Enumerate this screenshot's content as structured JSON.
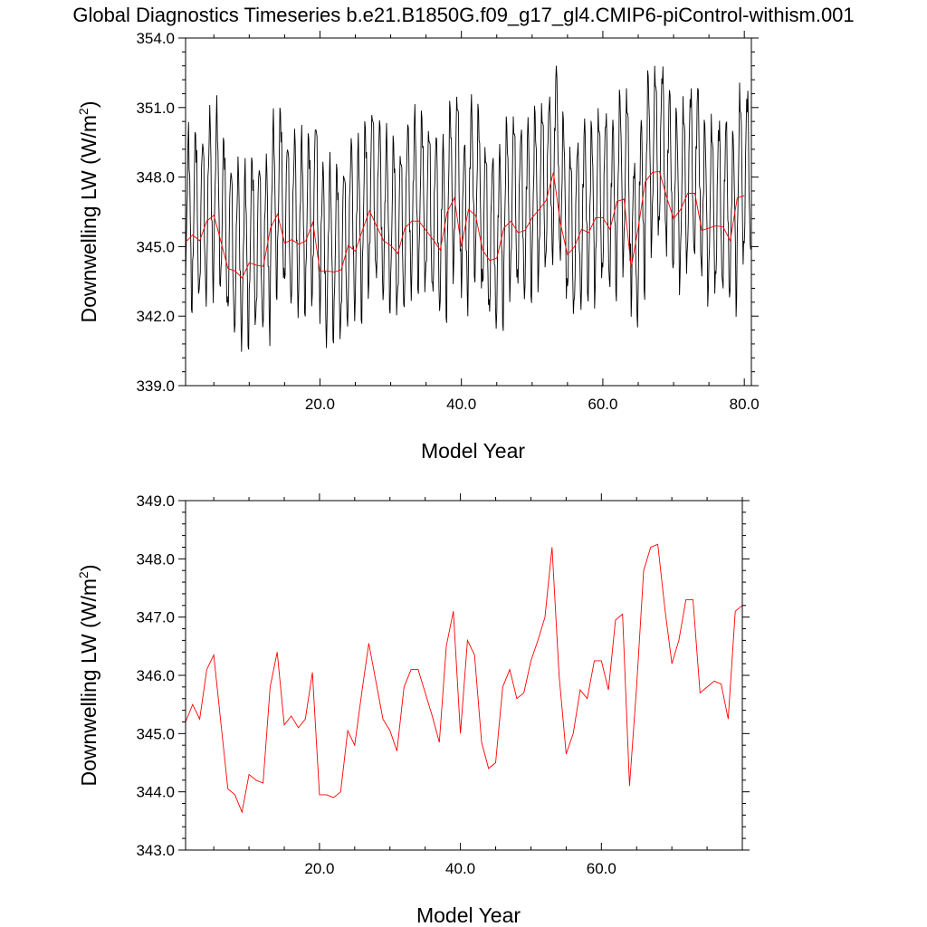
{
  "title": "Global Diagnostics Timeseries b.e21.B1850G.f09_g17_gl4.CMIP6-piControl-withism.001",
  "chart_data": [
    {
      "type": "line",
      "xlabel": "Model Year",
      "ylabel": "Downwelling LW (W/m²)",
      "ylabel_main": "Downwelling LW (W/m",
      "ylabel_sup": "2",
      "ylabel_end": ")",
      "xlim": [
        1,
        81
      ],
      "ylim": [
        339.0,
        354.0
      ],
      "xticks": [
        20.0,
        40.0,
        60.0,
        80.0
      ],
      "xtick_labels": [
        "20.0",
        "40.0",
        "60.0",
        "80.0"
      ],
      "yticks": [
        339.0,
        342.0,
        345.0,
        348.0,
        351.0,
        354.0
      ],
      "ytick_labels": [
        "339.0",
        "342.0",
        "345.0",
        "348.0",
        "351.0",
        "354.0"
      ],
      "grid": false,
      "series": [
        {
          "color": "#000000",
          "points_per_year": 12,
          "x_start": 1.0,
          "monthly_pattern_start": [
            -2.2,
            -0.3,
            1.0,
            2.7,
            4.0,
            4.4,
            4.0,
            2.7,
            0.9,
            -0.9,
            -2.2,
            -2.9
          ],
          "max_abs_dev": 4.4
        },
        {
          "color": "#ff0000",
          "x": [
            1,
            2,
            3,
            4,
            5,
            6,
            7,
            8,
            9,
            10,
            11,
            12,
            13,
            14,
            15,
            16,
            17,
            18,
            19,
            20,
            21,
            22,
            23,
            24,
            25,
            26,
            27,
            28,
            29,
            30,
            31,
            32,
            33,
            34,
            35,
            36,
            37,
            38,
            39,
            40,
            41,
            42,
            43,
            44,
            45,
            46,
            47,
            48,
            49,
            50,
            51,
            52,
            53,
            54,
            55,
            56,
            57,
            58,
            59,
            60,
            61,
            62,
            63,
            64,
            65,
            66,
            67,
            68,
            69,
            70,
            71,
            72,
            73,
            74,
            75,
            76,
            77,
            78,
            79,
            80
          ],
          "values": [
            345.2,
            345.5,
            345.25,
            346.1,
            346.35,
            345.2,
            344.05,
            343.95,
            343.65,
            344.3,
            344.2,
            344.15,
            345.8,
            346.4,
            345.15,
            345.3,
            345.1,
            345.25,
            346.05,
            343.95,
            343.95,
            343.9,
            344.0,
            345.05,
            344.8,
            345.7,
            346.55,
            345.9,
            345.25,
            345.05,
            344.7,
            345.8,
            346.1,
            346.1,
            345.7,
            345.3,
            344.85,
            346.5,
            347.1,
            345.0,
            346.6,
            346.35,
            344.85,
            344.4,
            344.5,
            345.8,
            346.1,
            345.6,
            345.7,
            346.25,
            346.6,
            347.0,
            348.2,
            346.0,
            344.65,
            345.0,
            345.75,
            345.6,
            346.25,
            346.25,
            345.75,
            346.95,
            347.05,
            344.1,
            345.8,
            347.8,
            348.2,
            348.25,
            347.15,
            346.2,
            346.6,
            347.3,
            347.3,
            345.7,
            345.8,
            345.9,
            345.85,
            345.25,
            347.1,
            347.2
          ]
        }
      ]
    },
    {
      "type": "line",
      "xlabel": "Model Year",
      "ylabel": "Downwelling LW (W/m²)",
      "ylabel_main": "Downwelling LW (W/m",
      "ylabel_sup": "2",
      "ylabel_end": ")",
      "xlim": [
        1,
        80
      ],
      "ylim": [
        343.0,
        349.0
      ],
      "xticks": [
        20.0,
        40.0,
        60.0
      ],
      "xtick_labels": [
        "20.0",
        "40.0",
        "60.0"
      ],
      "yticks": [
        343.0,
        344.0,
        345.0,
        346.0,
        347.0,
        348.0,
        349.0
      ],
      "ytick_labels": [
        "343.0",
        "344.0",
        "345.0",
        "346.0",
        "347.0",
        "348.0",
        "349.0"
      ],
      "grid": false,
      "series": [
        {
          "color": "#ff0000",
          "x": [
            1,
            2,
            3,
            4,
            5,
            6,
            7,
            8,
            9,
            10,
            11,
            12,
            13,
            14,
            15,
            16,
            17,
            18,
            19,
            20,
            21,
            22,
            23,
            24,
            25,
            26,
            27,
            28,
            29,
            30,
            31,
            32,
            33,
            34,
            35,
            36,
            37,
            38,
            39,
            40,
            41,
            42,
            43,
            44,
            45,
            46,
            47,
            48,
            49,
            50,
            51,
            52,
            53,
            54,
            55,
            56,
            57,
            58,
            59,
            60,
            61,
            62,
            63,
            64,
            65,
            66,
            67,
            68,
            69,
            70,
            71,
            72,
            73,
            74,
            75,
            76,
            77,
            78,
            79,
            80
          ],
          "values": [
            345.2,
            345.5,
            345.25,
            346.1,
            346.35,
            345.2,
            344.05,
            343.95,
            343.65,
            344.3,
            344.2,
            344.15,
            345.8,
            346.4,
            345.15,
            345.3,
            345.1,
            345.25,
            346.05,
            343.95,
            343.95,
            343.9,
            344.0,
            345.05,
            344.8,
            345.7,
            346.55,
            345.9,
            345.25,
            345.05,
            344.7,
            345.8,
            346.1,
            346.1,
            345.7,
            345.3,
            344.85,
            346.5,
            347.1,
            345.0,
            346.6,
            346.35,
            344.85,
            344.4,
            344.5,
            345.8,
            346.1,
            345.6,
            345.7,
            346.25,
            346.6,
            347.0,
            348.2,
            346.0,
            344.65,
            345.0,
            345.75,
            345.6,
            346.25,
            346.25,
            345.75,
            346.95,
            347.05,
            344.1,
            345.8,
            347.8,
            348.2,
            348.25,
            347.15,
            346.2,
            346.6,
            347.3,
            347.3,
            345.7,
            345.8,
            345.9,
            345.85,
            345.25,
            347.1,
            347.2
          ]
        }
      ]
    }
  ]
}
